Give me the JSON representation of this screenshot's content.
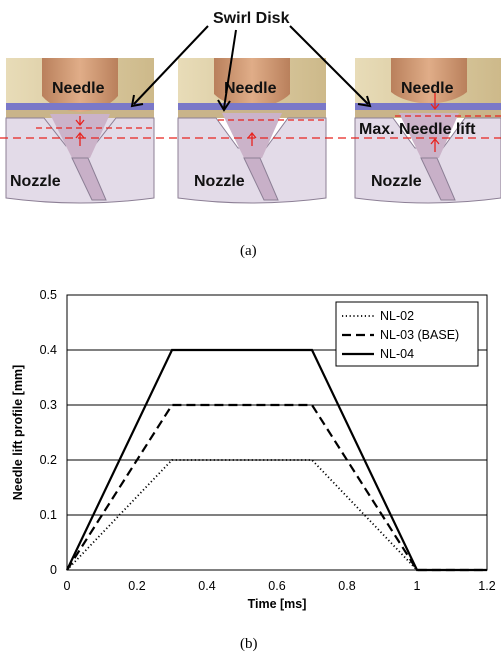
{
  "figure_a": {
    "callout": "Swirl Disk",
    "caption": "(a)",
    "panels": [
      {
        "needle": "Needle",
        "nozzle": "Nozzle",
        "extra": ""
      },
      {
        "needle": "Needle",
        "nozzle": "Nozzle",
        "extra": ""
      },
      {
        "needle": "Needle",
        "nozzle": "Nozzle",
        "extra": "Max. Needle lift"
      }
    ],
    "colors": {
      "housing": "#d9c9a0",
      "needle": "#c8926e",
      "swirl_disk": "#7a78c8",
      "nozzle_body": "#e3dbe8",
      "nozzle_channel": "#cbb3c9",
      "marker": "#e8231f"
    }
  },
  "figure_b": {
    "caption": "(b)"
  },
  "chart_data": {
    "type": "line",
    "title": "",
    "xlabel": "Time [ms]",
    "ylabel": "Needle lift  profile [mm]",
    "xlim": [
      0,
      1.2
    ],
    "ylim": [
      0,
      0.5
    ],
    "xticks": [
      "0",
      "0.2",
      "0.4",
      "0.6",
      "0.8",
      "1",
      "1.2"
    ],
    "yticks": [
      "0",
      "0.1",
      "0.2",
      "0.3",
      "0.4",
      "0.5"
    ],
    "grid": "horizontal",
    "legend_position": "top-right",
    "series": [
      {
        "name": "NL-02",
        "style": "dotted",
        "x": [
          0,
          0.3,
          0.7,
          1.0,
          1.2
        ],
        "y": [
          0,
          0.2,
          0.2,
          0,
          0
        ]
      },
      {
        "name": "NL-03 (BASE)",
        "style": "dashed",
        "x": [
          0,
          0.3,
          0.7,
          1.0,
          1.2
        ],
        "y": [
          0,
          0.3,
          0.3,
          0,
          0
        ]
      },
      {
        "name": "NL-04",
        "style": "solid",
        "x": [
          0,
          0.3,
          0.7,
          1.0,
          1.2
        ],
        "y": [
          0,
          0.4,
          0.4,
          0,
          0
        ]
      }
    ]
  }
}
